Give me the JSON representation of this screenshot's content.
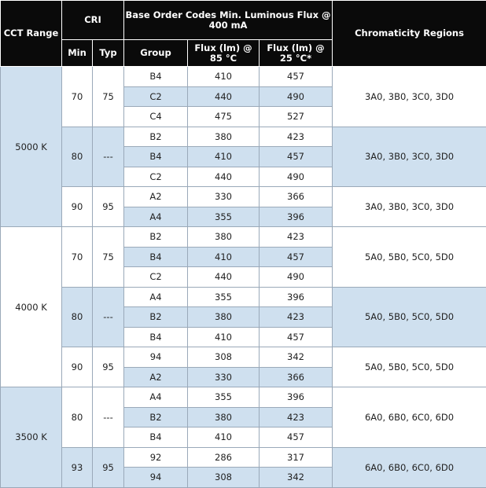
{
  "headers": {
    "cct_range": "CCT Range",
    "cri": "CRI",
    "base": "Base Order Codes Min. Luminous Flux @ 400 mA",
    "chromaticity": "Chromaticity Regions",
    "min": "Min",
    "typ": "Typ",
    "group": "Group",
    "flux85": "Flux (lm) @ 85 °C",
    "flux25": "Flux (lm) @ 25 °C*"
  },
  "cct_blocks": [
    {
      "cct": "5000 K",
      "sub_blocks": [
        {
          "cri_min": "70",
          "cri_typ": "75",
          "chromaticity": "3A0, 3B0, 3C0, 3D0",
          "rows": [
            {
              "group": "B4",
              "flux85": "410",
              "flux25": "457"
            },
            {
              "group": "C2",
              "flux85": "440",
              "flux25": "490"
            },
            {
              "group": "C4",
              "flux85": "475",
              "flux25": "527"
            }
          ]
        },
        {
          "cri_min": "80",
          "cri_typ": "---",
          "chromaticity": "3A0, 3B0, 3C0, 3D0",
          "rows": [
            {
              "group": "B2",
              "flux85": "380",
              "flux25": "423"
            },
            {
              "group": "B4",
              "flux85": "410",
              "flux25": "457"
            },
            {
              "group": "C2",
              "flux85": "440",
              "flux25": "490"
            }
          ]
        },
        {
          "cri_min": "90",
          "cri_typ": "95",
          "chromaticity": "3A0, 3B0, 3C0, 3D0",
          "rows": [
            {
              "group": "A2",
              "flux85": "330",
              "flux25": "366"
            },
            {
              "group": "A4",
              "flux85": "355",
              "flux25": "396"
            }
          ]
        }
      ]
    },
    {
      "cct": "4000 K",
      "sub_blocks": [
        {
          "cri_min": "70",
          "cri_typ": "75",
          "chromaticity": "5A0, 5B0, 5C0, 5D0",
          "rows": [
            {
              "group": "B2",
              "flux85": "380",
              "flux25": "423"
            },
            {
              "group": "B4",
              "flux85": "410",
              "flux25": "457"
            },
            {
              "group": "C2",
              "flux85": "440",
              "flux25": "490"
            }
          ]
        },
        {
          "cri_min": "80",
          "cri_typ": "---",
          "chromaticity": "5A0, 5B0, 5C0, 5D0",
          "rows": [
            {
              "group": "A4",
              "flux85": "355",
              "flux25": "396"
            },
            {
              "group": "B2",
              "flux85": "380",
              "flux25": "423"
            },
            {
              "group": "B4",
              "flux85": "410",
              "flux25": "457"
            }
          ]
        },
        {
          "cri_min": "90",
          "cri_typ": "95",
          "chromaticity": "5A0, 5B0, 5C0, 5D0",
          "rows": [
            {
              "group": "94",
              "flux85": "308",
              "flux25": "342"
            },
            {
              "group": "A2",
              "flux85": "330",
              "flux25": "366"
            }
          ]
        }
      ]
    },
    {
      "cct": "3500 K",
      "sub_blocks": [
        {
          "cri_min": "80",
          "cri_typ": "---",
          "chromaticity": "6A0, 6B0, 6C0, 6D0",
          "rows": [
            {
              "group": "A4",
              "flux85": "355",
              "flux25": "396"
            },
            {
              "group": "B2",
              "flux85": "380",
              "flux25": "423"
            },
            {
              "group": "B4",
              "flux85": "410",
              "flux25": "457"
            }
          ]
        },
        {
          "cri_min": "93",
          "cri_typ": "95",
          "chromaticity": "6A0, 6B0, 6C0, 6D0",
          "rows": [
            {
              "group": "92",
              "flux85": "286",
              "flux25": "317"
            },
            {
              "group": "94",
              "flux85": "308",
              "flux25": "342"
            }
          ]
        }
      ]
    }
  ],
  "colors": {
    "header_bg": "#0a0a0a",
    "header_text": "#ffffff",
    "shade_light_blue": "#cfe0ef",
    "shade_white": "#ffffff",
    "grid": "#9aa9b9"
  }
}
